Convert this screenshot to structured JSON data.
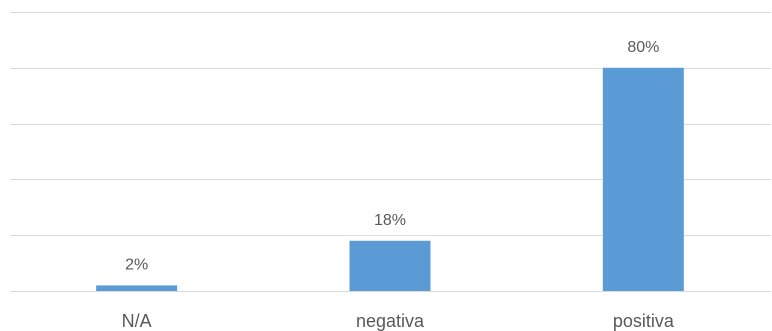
{
  "chart_data": {
    "type": "bar",
    "categories": [
      "N/A",
      "negativa",
      "positiva"
    ],
    "values": [
      2,
      18,
      80
    ],
    "data_labels": [
      "2%",
      "18%",
      "80%"
    ],
    "ylim": [
      0,
      100
    ],
    "grid": true,
    "bar_color": "#5b9bd5",
    "legend": "none"
  }
}
